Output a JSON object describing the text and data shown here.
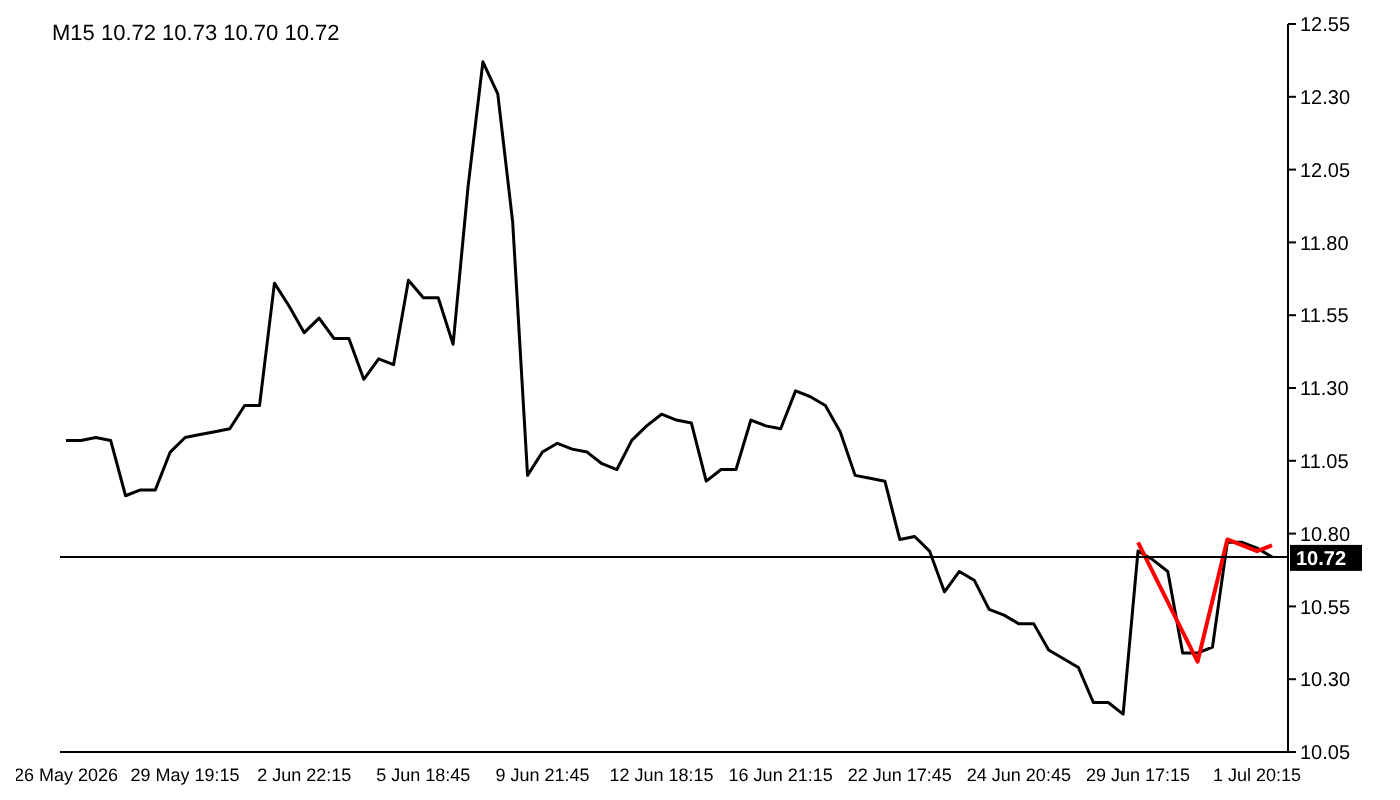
{
  "chart_data": {
    "type": "line",
    "title": "M15  10.72 10.73 10.70 10.72",
    "categories": [
      "26 May 2026",
      null,
      null,
      null,
      null,
      null,
      null,
      null,
      "29 May 19:15",
      null,
      null,
      null,
      null,
      null,
      null,
      null,
      "2 Jun 22:15",
      null,
      null,
      null,
      null,
      null,
      null,
      null,
      "5 Jun 18:45",
      null,
      null,
      null,
      null,
      null,
      null,
      null,
      "9 Jun 21:45",
      null,
      null,
      null,
      null,
      null,
      null,
      null,
      "12 Jun 18:15",
      null,
      null,
      null,
      null,
      null,
      null,
      null,
      "16 Jun 21:15",
      null,
      null,
      null,
      null,
      null,
      null,
      null,
      "22 Jun 17:45",
      null,
      null,
      null,
      null,
      null,
      null,
      null,
      "24 Jun 20:45",
      null,
      null,
      null,
      null,
      null,
      null,
      null,
      "29 Jun 17:15",
      null,
      null,
      null,
      null,
      null,
      null,
      null,
      "1 Jul 20:15",
      null
    ],
    "series": [
      {
        "color": "#000000",
        "values": [
          11.12,
          11.12,
          11.13,
          11.12,
          10.93,
          10.95,
          10.95,
          11.08,
          11.13,
          11.14,
          11.15,
          11.16,
          11.24,
          11.24,
          11.66,
          11.58,
          11.49,
          11.54,
          11.47,
          11.47,
          11.33,
          11.4,
          11.38,
          11.67,
          11.61,
          11.61,
          11.45,
          11.99,
          12.42,
          12.31,
          11.87,
          11.0,
          11.08,
          11.11,
          11.09,
          11.08,
          11.04,
          11.02,
          11.12,
          11.17,
          11.21,
          11.19,
          11.18,
          10.98,
          11.02,
          11.02,
          11.19,
          11.17,
          11.16,
          11.29,
          11.27,
          11.24,
          11.15,
          11.0,
          10.99,
          10.98,
          10.78,
          10.79,
          10.74,
          10.6,
          10.67,
          10.64,
          10.54,
          10.52,
          10.49,
          10.49,
          10.4,
          10.37,
          10.34,
          10.22,
          10.22,
          10.18,
          10.74,
          10.71,
          10.67,
          10.39,
          10.39,
          10.41,
          10.77,
          10.77,
          10.75,
          10.72
        ]
      },
      {
        "color": "#ff0000",
        "values": [
          null,
          null,
          null,
          null,
          null,
          null,
          null,
          null,
          null,
          null,
          null,
          null,
          null,
          null,
          null,
          null,
          null,
          null,
          null,
          null,
          null,
          null,
          null,
          null,
          null,
          null,
          null,
          null,
          null,
          null,
          null,
          null,
          null,
          null,
          null,
          null,
          null,
          null,
          null,
          null,
          null,
          null,
          null,
          null,
          null,
          null,
          null,
          null,
          null,
          null,
          null,
          null,
          null,
          null,
          null,
          null,
          null,
          null,
          null,
          null,
          null,
          null,
          null,
          null,
          null,
          null,
          null,
          null,
          null,
          null,
          null,
          null,
          10.77,
          null,
          null,
          null,
          10.36,
          null,
          10.78,
          null,
          10.74,
          10.76
        ]
      }
    ],
    "ylim": [
      10.05,
      12.55
    ],
    "yticks": [
      {
        "value": 10.05,
        "label": "10.05"
      },
      {
        "value": 10.3,
        "label": "10.30"
      },
      {
        "value": 10.55,
        "label": "10.55"
      },
      {
        "value": 10.8,
        "label": "10.80"
      },
      {
        "value": 11.05,
        "label": "11.05"
      },
      {
        "value": 11.3,
        "label": "11.30"
      },
      {
        "value": 11.55,
        "label": "11.55"
      },
      {
        "value": 11.8,
        "label": "11.80"
      },
      {
        "value": 12.05,
        "label": "12.05"
      },
      {
        "value": 12.3,
        "label": "12.30"
      },
      {
        "value": 12.55,
        "label": "12.55"
      }
    ],
    "ref_lines": [
      {
        "axis": "y",
        "value": 10.72,
        "label": "10.72",
        "color": "#000000"
      }
    ],
    "grid": false,
    "legend": false,
    "marker": "none",
    "line_style": "solid"
  }
}
